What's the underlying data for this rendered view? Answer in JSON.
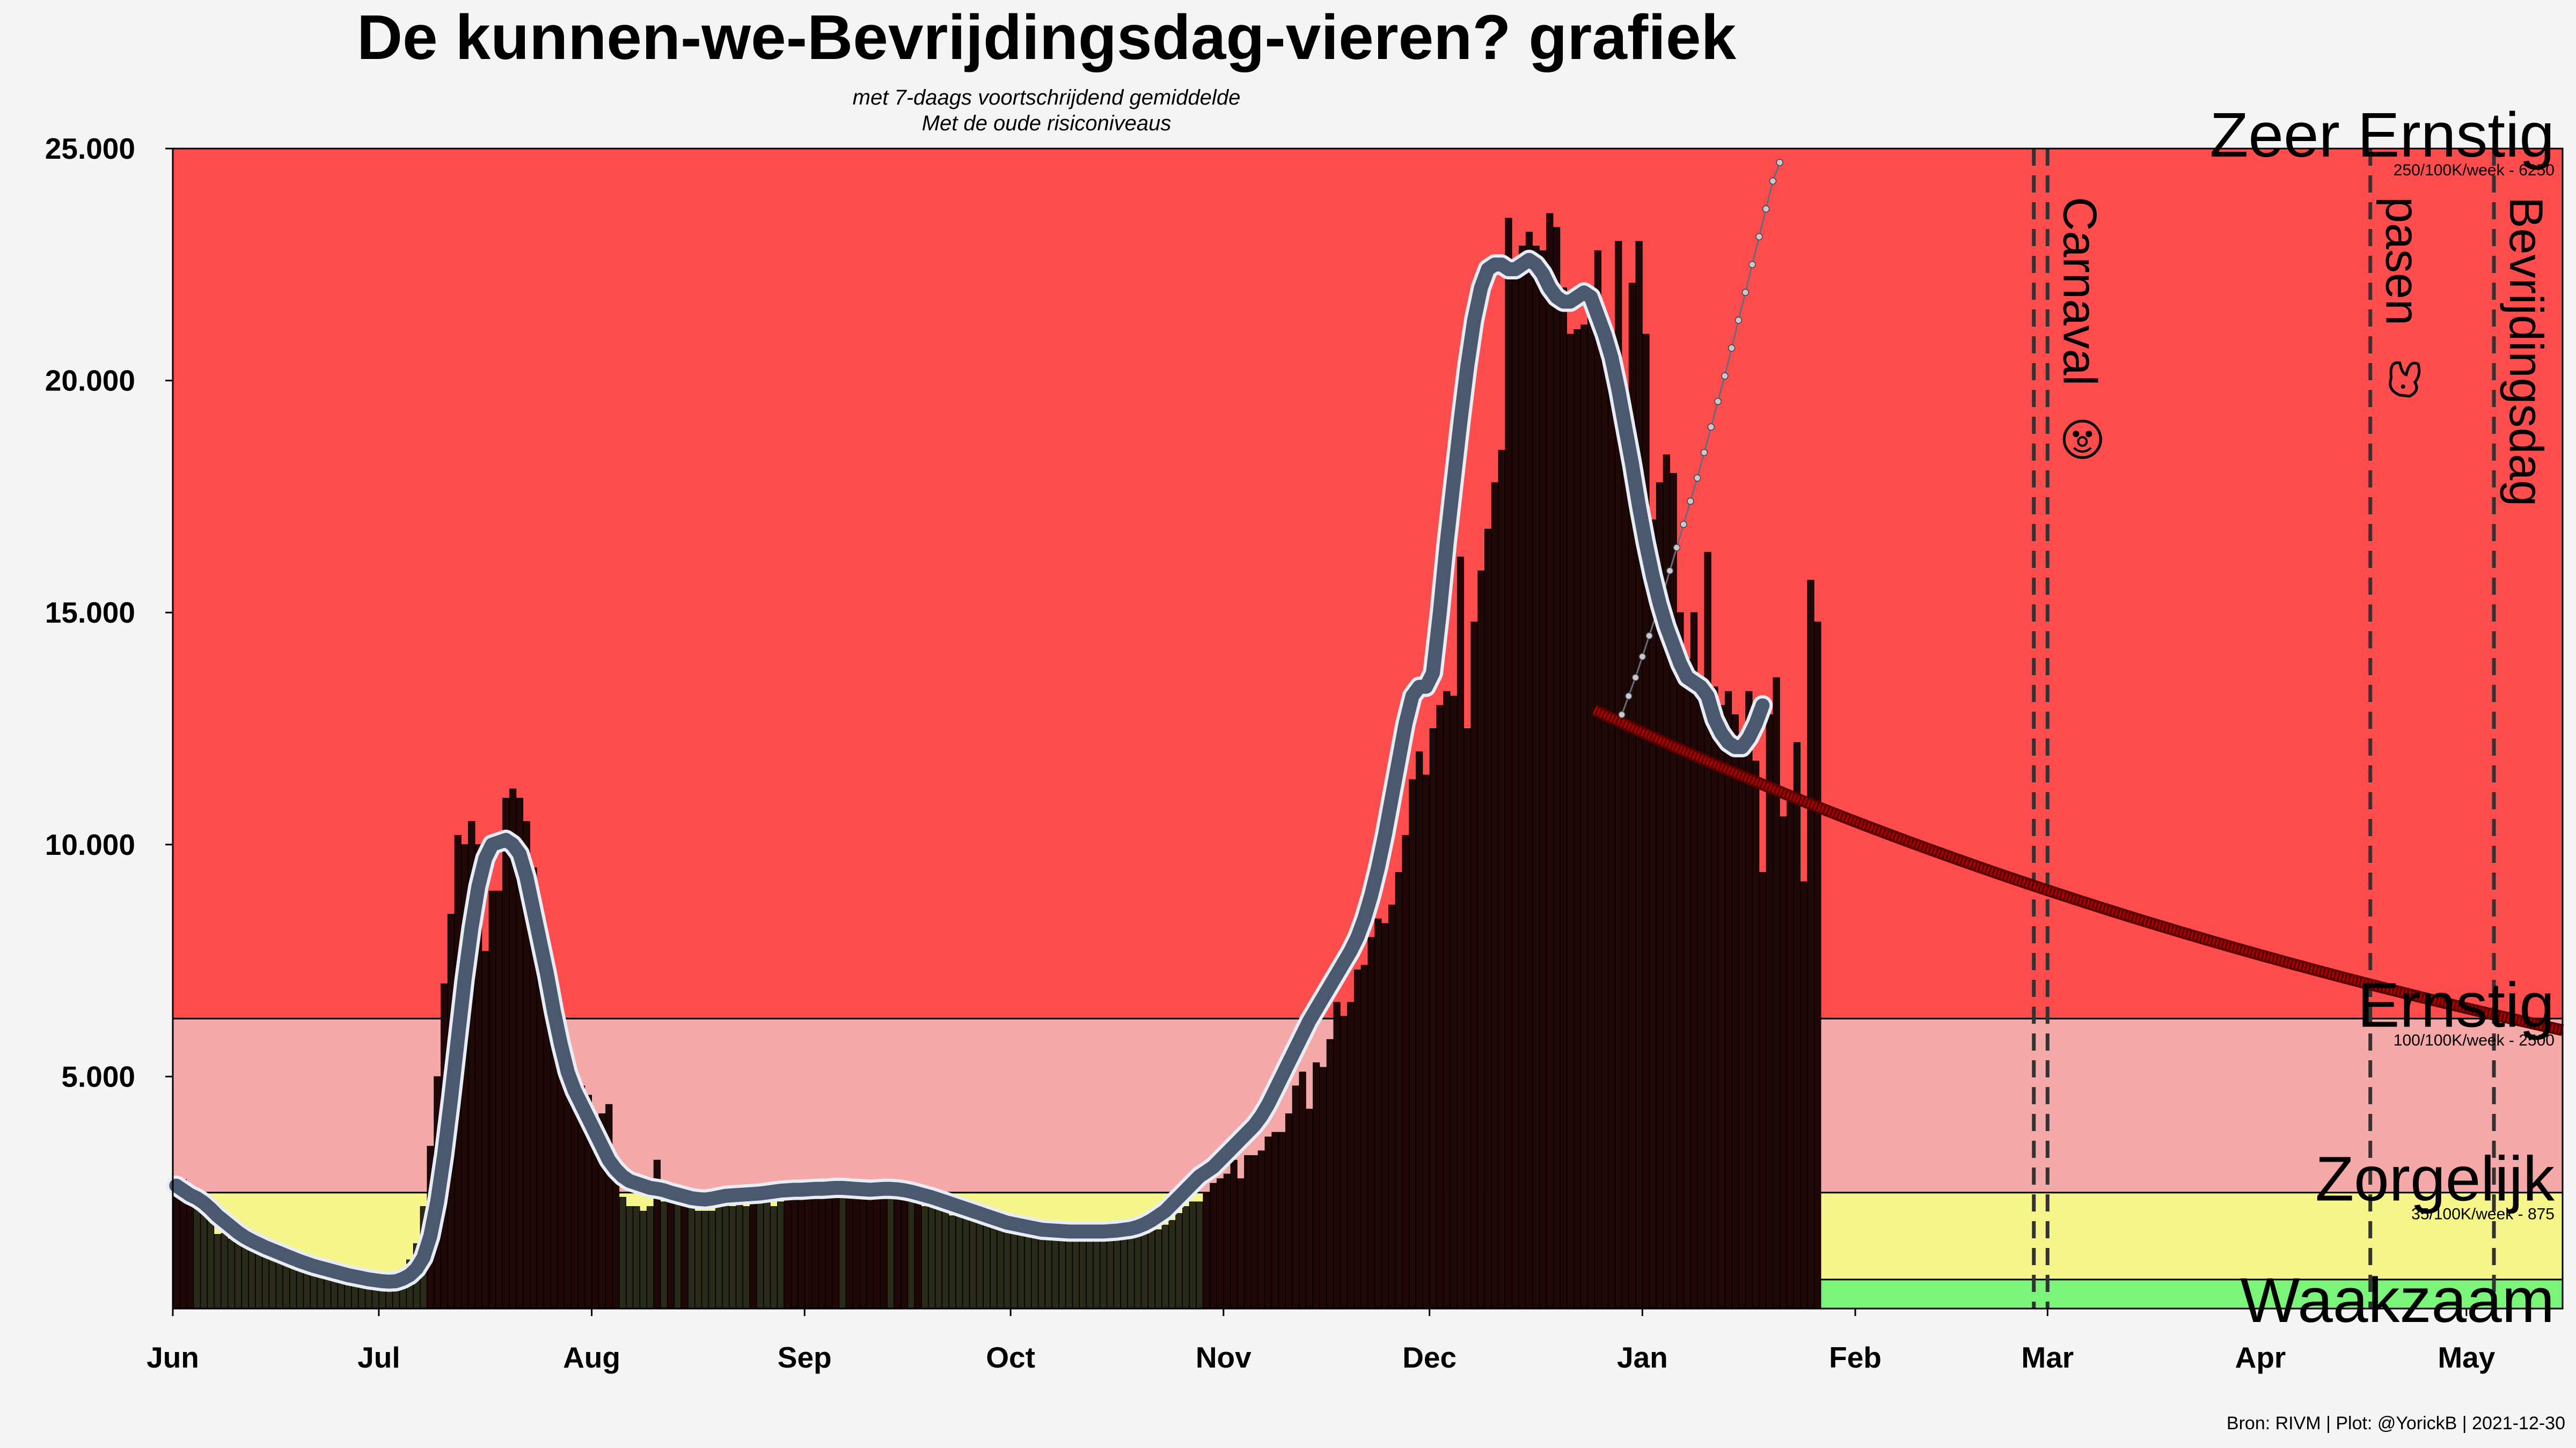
{
  "chart_data": {
    "type": "bar",
    "title": "De kunnen-we-Bevrijdingsdag-vieren? grafiek",
    "subtitle_line1": "met 7-daags voortschrijdend gemiddelde",
    "subtitle_line2": "Met de oude risiconiveaus",
    "caption": "Bron: RIVM | Plot: @YorickB  |  2021-12-30",
    "x_start": "2021-06-01",
    "x_end": "2022-05-15",
    "ylim": [
      0,
      25000
    ],
    "yticks": [
      5000,
      10000,
      15000,
      20000,
      25000
    ],
    "ytick_labels": [
      "5.000",
      "10.000",
      "15.000",
      "20.000",
      "25.000"
    ],
    "xticks": [
      {
        "date": "2021-06-01",
        "label": "Jun"
      },
      {
        "date": "2021-07-01",
        "label": "Jul"
      },
      {
        "date": "2021-08-01",
        "label": "Aug"
      },
      {
        "date": "2021-09-01",
        "label": "Sep"
      },
      {
        "date": "2021-10-01",
        "label": "Oct"
      },
      {
        "date": "2021-11-01",
        "label": "Nov"
      },
      {
        "date": "2021-12-01",
        "label": "Dec"
      },
      {
        "date": "2022-01-01",
        "label": "Jan"
      },
      {
        "date": "2022-02-01",
        "label": "Feb"
      },
      {
        "date": "2022-03-01",
        "label": "Mar"
      },
      {
        "date": "2022-04-01",
        "label": "Apr"
      },
      {
        "date": "2022-05-01",
        "label": "May"
      }
    ],
    "risk_levels": [
      {
        "name": "Waakzaam",
        "from": 0,
        "to": 625,
        "color": "#7af57a",
        "note": ""
      },
      {
        "name": "Zorgelijk",
        "from": 625,
        "to": 2500,
        "color": "#f5f58a",
        "note": "35/100K/week - 875"
      },
      {
        "name": "Ernstig",
        "from": 2500,
        "to": 6250,
        "color": "#f5a8a8",
        "note": "100/100K/week - 2500"
      },
      {
        "name": "Zeer Ernstig",
        "from": 6250,
        "to": 25000,
        "color": "#ff4d4d",
        "note": "250/100K/week - 6250"
      }
    ],
    "events": [
      {
        "date": "2022-02-27",
        "date2": "2022-03-01",
        "label": "Carnaval",
        "icon": "clown-face-icon"
      },
      {
        "date": "2022-04-17",
        "label": "pasen",
        "icon": "rabbit-icon"
      },
      {
        "date": "2022-05-05",
        "label": "Bevrijdingsdag",
        "icon": ""
      }
    ],
    "series": [
      {
        "name": "",
        "kind": "daily-bars",
        "start": "2021-06-01",
        "values": [
          2700,
          2780,
          2500,
          2300,
          2150,
          2000,
          1600,
          1620,
          1500,
          1430,
          1380,
          1300,
          1250,
          1200,
          1130,
          1050,
          1020,
          980,
          920,
          880,
          830,
          810,
          790,
          760,
          720,
          690,
          660,
          640,
          600,
          550,
          560,
          620,
          700,
          850,
          1050,
          1400,
          2200,
          3500,
          5000,
          7000,
          8500,
          10200,
          10000,
          10500,
          10000,
          7700,
          9000,
          9000,
          11000,
          11200,
          11000,
          10500,
          9500,
          8600,
          7800,
          6800,
          5700,
          5200,
          5000,
          4800,
          4600,
          3600,
          4200,
          4400,
          3200,
          2400,
          2200,
          2200,
          2100,
          2200,
          3200,
          2300,
          2700,
          2400,
          2500,
          2300,
          2100,
          2100,
          2100,
          2200,
          2400,
          2200,
          2300,
          2200,
          2600,
          2300,
          2400,
          2200,
          2300,
          2700,
          2500,
          2500,
          2600,
          2700,
          2500,
          2800,
          2500,
          2400,
          2800,
          2600,
          2500,
          2500,
          2600,
          2600,
          2400,
          2700,
          2500,
          2400,
          2500,
          2200,
          2400,
          2200,
          2300,
          2000,
          2000,
          2100,
          2000,
          1900,
          2000,
          1900,
          1700,
          2000,
          1800,
          1800,
          1700,
          1600,
          1500,
          1700,
          1700,
          1600,
          1650,
          1600,
          1600,
          1500,
          1500,
          1600,
          1600,
          1550,
          1600,
          1600,
          1650,
          1650,
          1700,
          1700,
          1800,
          1900,
          2050,
          2200,
          2300,
          2300,
          2500,
          2700,
          2800,
          2900,
          3200,
          2800,
          3300,
          3300,
          3400,
          3700,
          3800,
          3800,
          4200,
          4800,
          5100,
          4300,
          5300,
          5200,
          5800,
          6600,
          6300,
          6600,
          7300,
          7400,
          8000,
          8400,
          8300,
          8700,
          9400,
          10200,
          11400,
          12000,
          11500,
          12500,
          13000,
          13300,
          13200,
          16200,
          12500,
          14800,
          15900,
          16800,
          17800,
          18500,
          23500,
          22300,
          22900,
          23200,
          22900,
          22800,
          23600,
          23300,
          22000,
          21000,
          21100,
          21200,
          21800,
          22800,
          21400,
          20000,
          23000,
          18300,
          22100,
          23000,
          21000,
          17000,
          17800,
          18400,
          18000,
          15000,
          14000,
          15000,
          13500,
          16300,
          13400,
          13000,
          13300,
          12800,
          11900,
          13300,
          11800,
          9400,
          12800,
          13600,
          10600,
          11000,
          12200,
          9200,
          15700,
          14800
        ]
      },
      {
        "name": "",
        "kind": "rolling-average",
        "start": "2021-06-01",
        "values": [
          2650,
          2550,
          2450,
          2380,
          2280,
          2150,
          2000,
          1880,
          1760,
          1640,
          1540,
          1460,
          1390,
          1320,
          1260,
          1200,
          1140,
          1080,
          1020,
          970,
          920,
          880,
          840,
          800,
          760,
          720,
          690,
          660,
          630,
          610,
          590,
          580,
          590,
          640,
          720,
          860,
          1100,
          1560,
          2300,
          3300,
          4500,
          5800,
          7100,
          8200,
          9100,
          9700,
          10000,
          10050,
          10100,
          10000,
          9800,
          9300,
          8600,
          7900,
          7200,
          6400,
          5700,
          5100,
          4700,
          4400,
          4100,
          3800,
          3500,
          3200,
          3000,
          2850,
          2750,
          2700,
          2650,
          2600,
          2580,
          2550,
          2500,
          2460,
          2420,
          2380,
          2360,
          2350,
          2370,
          2400,
          2430,
          2440,
          2450,
          2460,
          2470,
          2480,
          2500,
          2520,
          2540,
          2550,
          2560,
          2560,
          2570,
          2580,
          2580,
          2590,
          2600,
          2600,
          2590,
          2580,
          2570,
          2560,
          2570,
          2580,
          2580,
          2570,
          2550,
          2520,
          2480,
          2440,
          2400,
          2350,
          2300,
          2250,
          2200,
          2150,
          2100,
          2050,
          2000,
          1950,
          1900,
          1850,
          1820,
          1790,
          1760,
          1730,
          1700,
          1690,
          1680,
          1670,
          1660,
          1660,
          1660,
          1660,
          1660,
          1660,
          1670,
          1680,
          1700,
          1720,
          1760,
          1820,
          1900,
          2000,
          2100,
          2250,
          2400,
          2550,
          2700,
          2850,
          2950,
          3050,
          3200,
          3350,
          3500,
          3650,
          3800,
          3950,
          4150,
          4400,
          4700,
          5000,
          5300,
          5600,
          5900,
          6200,
          6450,
          6700,
          6950,
          7200,
          7450,
          7700,
          8000,
          8400,
          8900,
          9500,
          10200,
          11000,
          11800,
          12600,
          13200,
          13400,
          13400,
          13700,
          15000,
          16500,
          17800,
          19100,
          20300,
          21300,
          22000,
          22400,
          22500,
          22500,
          22400,
          22400,
          22500,
          22600,
          22500,
          22300,
          22000,
          21800,
          21700,
          21700,
          21800,
          21900,
          21800,
          21400,
          21000,
          20500,
          19800,
          19000,
          18200,
          17300,
          16500,
          15800,
          15200,
          14700,
          14300,
          13900,
          13600,
          13500,
          13400,
          13200,
          12700,
          12400,
          12200,
          12100,
          12100,
          12300,
          12600,
          13000
        ]
      },
      {
        "name": "",
        "kind": "projection-growth",
        "start": "2021-12-29",
        "values": [
          12800,
          13200,
          13600,
          14050,
          14500,
          14950,
          15400,
          15900,
          16400,
          16900,
          17400,
          17900,
          18450,
          19000,
          19550,
          20100,
          20700,
          21300,
          21900,
          22500,
          23100,
          23700,
          24300,
          24700
        ]
      },
      {
        "name": "",
        "kind": "projection-decline",
        "start": "2021-12-25",
        "end": "2022-05-15",
        "from": 12900,
        "to": 6000
      }
    ]
  }
}
